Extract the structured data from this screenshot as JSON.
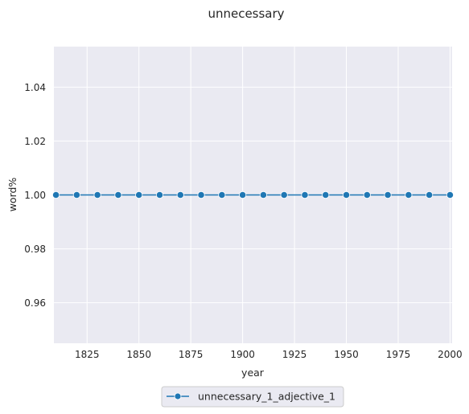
{
  "chart_data": {
    "type": "line",
    "title": "unnecessary",
    "xlabel": "year",
    "ylabel": "word%",
    "xlim": [
      1809,
      2001
    ],
    "ylim": [
      0.945,
      1.055
    ],
    "x_ticks": [
      1825,
      1850,
      1875,
      1900,
      1925,
      1950,
      1975,
      2000
    ],
    "y_ticks": [
      0.96,
      0.98,
      1.0,
      1.02,
      1.04
    ],
    "y_tick_labels": [
      "0.96",
      "0.98",
      "1.00",
      "1.02",
      "1.04"
    ],
    "grid": true,
    "legend_position": "bottom-center",
    "series": [
      {
        "name": "unnecessary_1_adjective_1",
        "color": "#1f77b4",
        "marker": "circle",
        "x": [
          1810,
          1820,
          1830,
          1840,
          1850,
          1860,
          1870,
          1880,
          1890,
          1900,
          1910,
          1920,
          1930,
          1940,
          1950,
          1960,
          1970,
          1980,
          1990,
          2000
        ],
        "y": [
          1.0,
          1.0,
          1.0,
          1.0,
          1.0,
          1.0,
          1.0,
          1.0,
          1.0,
          1.0,
          1.0,
          1.0,
          1.0,
          1.0,
          1.0,
          1.0,
          1.0,
          1.0,
          1.0,
          1.0
        ]
      }
    ]
  }
}
